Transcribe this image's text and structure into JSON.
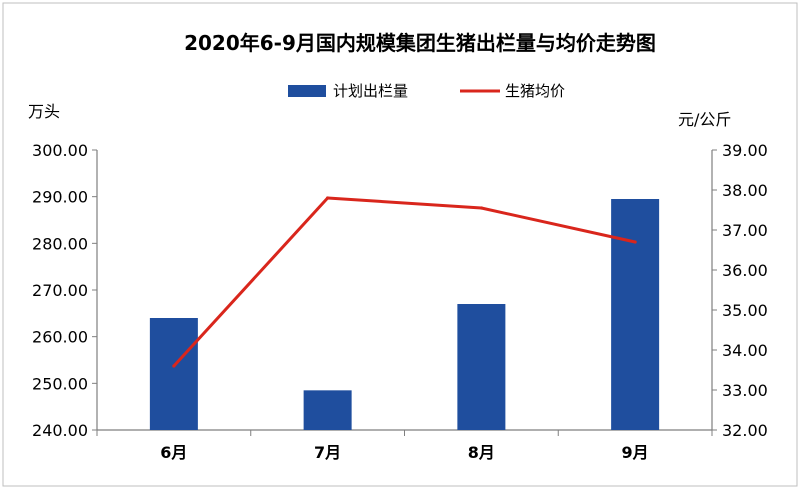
{
  "chart_data": {
    "type": "bar+line",
    "title": "2020年6-9月国内规模集团生猪出栏量与均价走势图",
    "categories": [
      "6月",
      "7月",
      "8月",
      "9月"
    ],
    "y_left": {
      "unit_label": "万头",
      "ylim": [
        240,
        300
      ],
      "ticks": [
        "300.00",
        "290.00",
        "280.00",
        "270.00",
        "260.00",
        "250.00",
        "240.00"
      ]
    },
    "y_right": {
      "unit_label": "元/公斤",
      "ylim": [
        32,
        39
      ],
      "ticks": [
        "39.00",
        "38.00",
        "37.00",
        "36.00",
        "35.00",
        "34.00",
        "33.00",
        "32.00"
      ]
    },
    "series": [
      {
        "name": "计划出栏量",
        "type": "bar",
        "axis": "left",
        "color": "#1f4e9e",
        "values": [
          264,
          248.5,
          267,
          289.5
        ]
      },
      {
        "name": "生猪均价",
        "type": "line",
        "axis": "right",
        "color": "#d9261c",
        "values": [
          33.6,
          37.8,
          37.55,
          36.7
        ]
      }
    ],
    "legend_position": "top",
    "grid": false
  }
}
